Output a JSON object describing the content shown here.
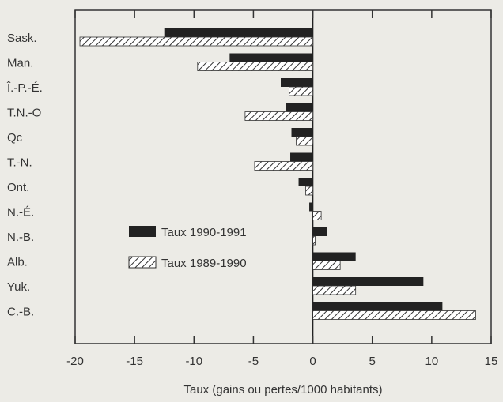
{
  "chart_data": {
    "type": "bar",
    "orientation": "horizontal",
    "categories": [
      "Sask.",
      "Man.",
      "Î.-P.-É.",
      "T.N.-O",
      "Qc",
      "T.-N.",
      "Ont.",
      "N.-É.",
      "N.-B.",
      "Alb.",
      "Yuk.",
      "C.-B."
    ],
    "series": [
      {
        "name": "Taux 1990-1991",
        "style": "solid",
        "color": "#222222",
        "values": [
          -12.5,
          -7,
          -2.7,
          -2.3,
          -1.8,
          -1.9,
          -1.2,
          -0.3,
          1.2,
          3.6,
          9.3,
          10.9
        ]
      },
      {
        "name": "Taux 1989-1990",
        "style": "hatched",
        "color": "#ffffff",
        "values": [
          -19.6,
          -9.7,
          -2.0,
          -5.7,
          -1.4,
          -4.9,
          -0.6,
          0.7,
          0.2,
          2.3,
          3.6,
          13.7
        ]
      }
    ],
    "xticks": [
      -20,
      -15,
      -10,
      -5,
      0,
      5,
      10,
      15
    ],
    "xlim": [
      -20,
      15
    ],
    "xlabel": "Taux (gains ou pertes/1000 habitants)",
    "ylabel": "",
    "title": "",
    "legend_position": "lower-left"
  }
}
